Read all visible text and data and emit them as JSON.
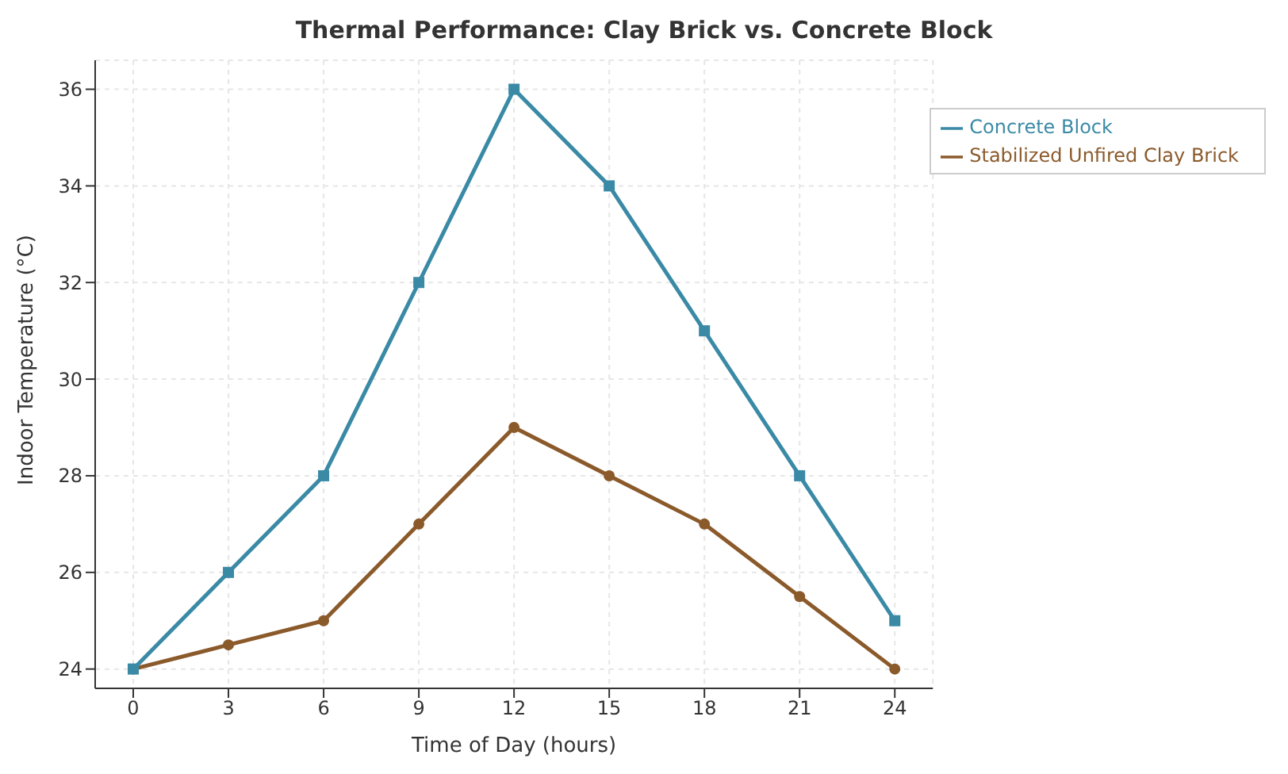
{
  "chart_data": {
    "type": "line",
    "title": "Thermal Performance: Clay Brick vs. Concrete Block",
    "xlabel": "Time of Day (hours)",
    "ylabel": "Indoor Temperature (°C)",
    "x": [
      0,
      3,
      6,
      9,
      12,
      15,
      18,
      21,
      24
    ],
    "series": [
      {
        "name": "Stabilized Unfired Clay Brick",
        "color": "#8b5a2b",
        "marker": "circle",
        "values": [
          24,
          24.5,
          25,
          27,
          29,
          28,
          27,
          25.5,
          24
        ]
      },
      {
        "name": "Concrete Block",
        "color": "#3a8aa6",
        "marker": "square",
        "values": [
          24,
          26,
          28,
          32,
          36,
          34,
          31,
          28,
          25
        ]
      }
    ],
    "xlim": [
      -1.2,
      25.2
    ],
    "xticks": [
      0,
      3,
      6,
      9,
      12,
      15,
      18,
      21,
      24
    ],
    "ylim": [
      23.6,
      36.6
    ],
    "yticks": [
      24,
      26,
      28,
      30,
      32,
      34,
      36
    ],
    "grid": true,
    "legend": "top right",
    "line_style": "solid"
  }
}
